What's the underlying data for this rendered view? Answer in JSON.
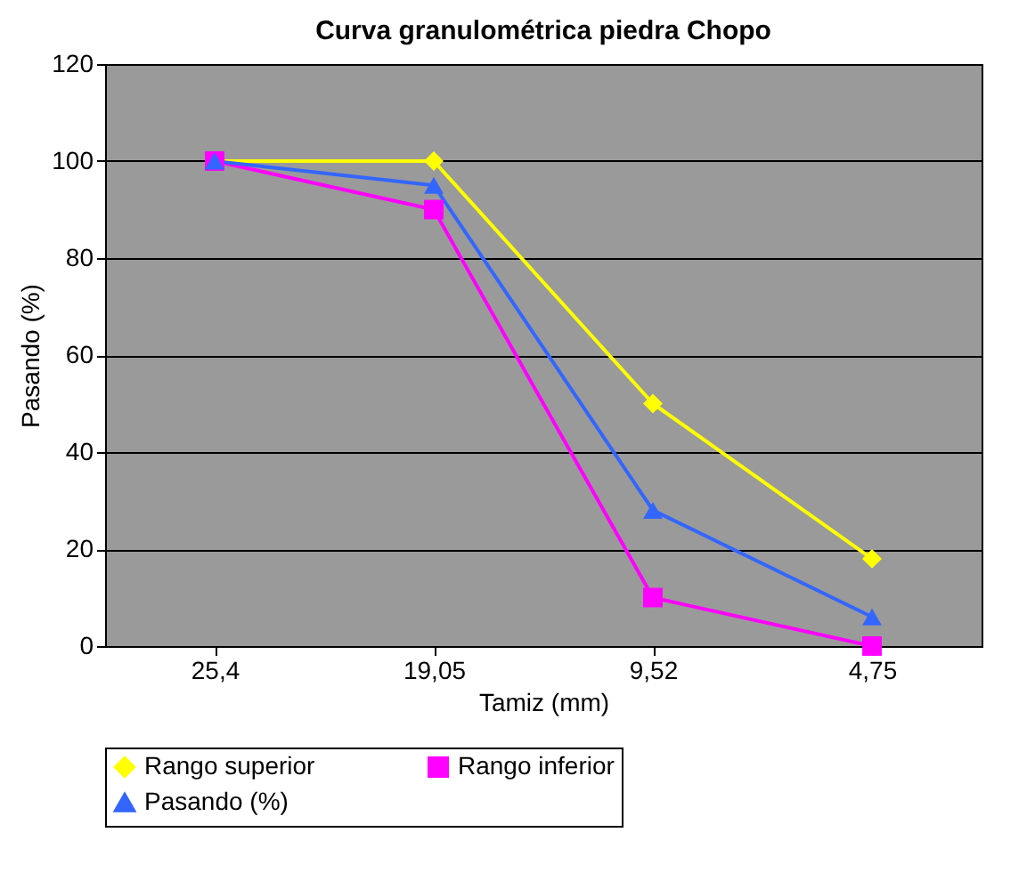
{
  "chart_data": {
    "type": "line",
    "title": "Curva granulométrica piedra Chopo",
    "xlabel": "Tamiz (mm)",
    "ylabel": "Pasando (%)",
    "categories": [
      "25,4",
      "19,05",
      "9,52",
      "4,75"
    ],
    "series": [
      {
        "name": "Rango superior",
        "color": "#ffff00",
        "marker": "diamond",
        "values": [
          100,
          100,
          50,
          18
        ]
      },
      {
        "name": "Rango inferior",
        "color": "#ff00ff",
        "marker": "square",
        "values": [
          100,
          90,
          10,
          0
        ]
      },
      {
        "name": "Pasando (%)",
        "color": "#3366ff",
        "marker": "triangle",
        "values": [
          100,
          95,
          28,
          6
        ]
      }
    ],
    "ylim": [
      0,
      120
    ],
    "yticks": [
      0,
      20,
      40,
      60,
      80,
      100,
      120
    ],
    "grid": "y",
    "legend": "bottom"
  }
}
